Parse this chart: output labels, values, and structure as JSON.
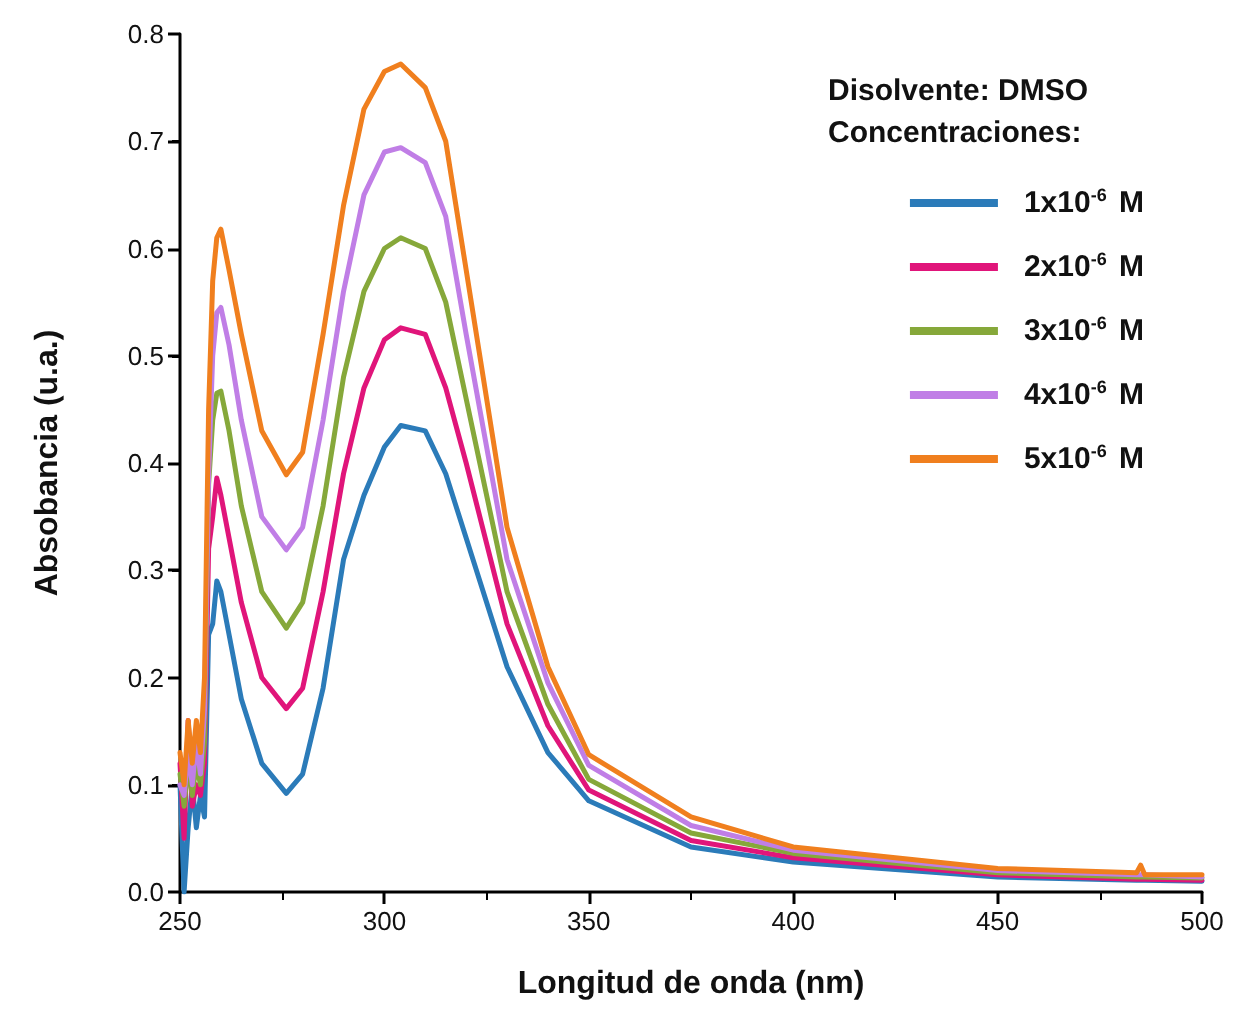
{
  "chart_data": {
    "type": "line",
    "xlabel": "Longitud de onda (nm)",
    "ylabel": "Absobancia (u.a.)",
    "legend_title": "Concentraciones:",
    "annotations": [
      "Disolvente: DMSO"
    ],
    "x": [
      250,
      251,
      252,
      253,
      254,
      255,
      256,
      257,
      258,
      259,
      260,
      262,
      265,
      270,
      276,
      280,
      285,
      290,
      295,
      300,
      304,
      310,
      315,
      320,
      330,
      340,
      350,
      375,
      400,
      450,
      484,
      485,
      486,
      500
    ],
    "series": [
      {
        "name": "1x10$^{-6}$ M",
        "color": "#2b7bb9",
        "values": [
          0.1,
          0.0,
          0.06,
          0.1,
          0.06,
          0.09,
          0.07,
          0.24,
          0.25,
          0.29,
          0.28,
          0.24,
          0.18,
          0.12,
          0.092,
          0.11,
          0.19,
          0.31,
          0.37,
          0.415,
          0.435,
          0.43,
          0.39,
          0.33,
          0.21,
          0.13,
          0.085,
          0.042,
          0.028,
          0.014,
          0.011,
          0.011,
          0.011,
          0.01
        ]
      },
      {
        "name": "2x10$^{-6}$ M",
        "color": "#e0157a",
        "values": [
          0.12,
          0.05,
          0.16,
          0.08,
          0.1,
          0.09,
          0.12,
          0.32,
          0.35,
          0.386,
          0.37,
          0.33,
          0.27,
          0.2,
          0.171,
          0.19,
          0.28,
          0.39,
          0.47,
          0.515,
          0.526,
          0.52,
          0.47,
          0.4,
          0.25,
          0.155,
          0.095,
          0.048,
          0.032,
          0.016,
          0.012,
          0.012,
          0.012,
          0.011
        ]
      },
      {
        "name": "3x10$^{-6}$ M",
        "color": "#86a83a",
        "values": [
          0.11,
          0.08,
          0.12,
          0.09,
          0.12,
          0.1,
          0.14,
          0.38,
          0.44,
          0.465,
          0.467,
          0.43,
          0.36,
          0.28,
          0.246,
          0.27,
          0.36,
          0.48,
          0.56,
          0.6,
          0.61,
          0.6,
          0.55,
          0.46,
          0.28,
          0.175,
          0.105,
          0.055,
          0.036,
          0.018,
          0.014,
          0.014,
          0.014,
          0.013
        ]
      },
      {
        "name": "4x10$^{-6}$ M",
        "color": "#c07ee6",
        "values": [
          0.1,
          0.09,
          0.13,
          0.1,
          0.14,
          0.11,
          0.17,
          0.39,
          0.5,
          0.54,
          0.545,
          0.51,
          0.44,
          0.35,
          0.319,
          0.34,
          0.44,
          0.56,
          0.65,
          0.69,
          0.694,
          0.68,
          0.63,
          0.52,
          0.31,
          0.195,
          0.118,
          0.062,
          0.039,
          0.02,
          0.016,
          0.016,
          0.016,
          0.014
        ]
      },
      {
        "name": "5x10$^{-6}$ M",
        "color": "#f07f1e",
        "values": [
          0.13,
          0.1,
          0.16,
          0.12,
          0.16,
          0.13,
          0.2,
          0.45,
          0.57,
          0.61,
          0.618,
          0.58,
          0.52,
          0.43,
          0.389,
          0.41,
          0.52,
          0.64,
          0.73,
          0.765,
          0.772,
          0.75,
          0.7,
          0.58,
          0.34,
          0.21,
          0.128,
          0.07,
          0.042,
          0.022,
          0.018,
          0.025,
          0.016,
          0.016
        ]
      }
    ],
    "xlim": [
      250,
      500
    ],
    "xticks": [
      250,
      300,
      350,
      400,
      450,
      500
    ],
    "ylim": [
      0,
      0.8
    ],
    "yticks": [
      {
        "value": 0,
        "label": "0.0"
      },
      0.1,
      0.2,
      0.3,
      0.4,
      0.5,
      0.6,
      0.7,
      0.8
    ],
    "grid": false,
    "legend": "top right",
    "marker": "none",
    "line_style": "solid"
  }
}
